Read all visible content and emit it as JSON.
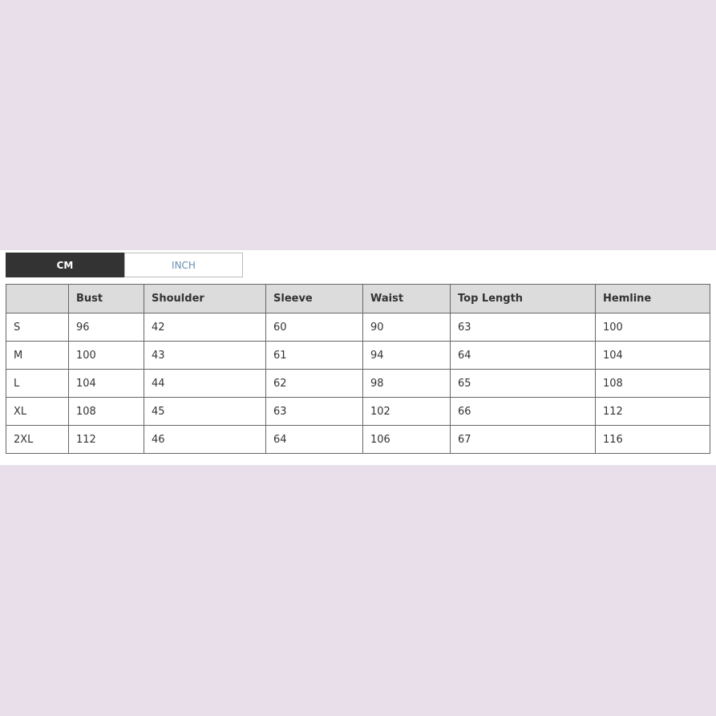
{
  "units": {
    "tabs": [
      "CM",
      "INCH"
    ],
    "selected": "CM"
  },
  "table": {
    "headers": [
      "",
      "Bust",
      "Shoulder",
      "Sleeve",
      "Waist",
      "Top Length",
      "Hemline"
    ],
    "rows": [
      [
        "S",
        "96",
        "42",
        "60",
        "90",
        "63",
        "100"
      ],
      [
        "M",
        "100",
        "43",
        "61",
        "94",
        "64",
        "104"
      ],
      [
        "L",
        "104",
        "44",
        "62",
        "98",
        "65",
        "108"
      ],
      [
        "XL",
        "108",
        "45",
        "63",
        "102",
        "66",
        "112"
      ],
      [
        "2XL",
        "112",
        "46",
        "64",
        "106",
        "67",
        "116"
      ]
    ]
  },
  "colors": {
    "background": "#e8dfea",
    "active_tab": "#333333",
    "header_bg": "#dcdcdc"
  }
}
